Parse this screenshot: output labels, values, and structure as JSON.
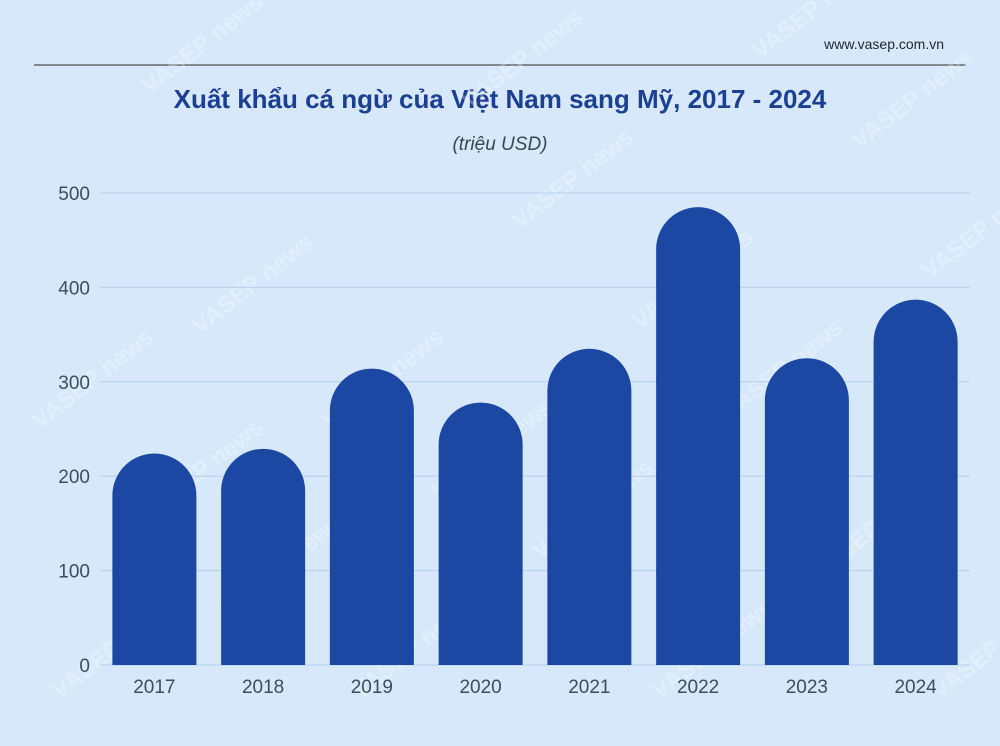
{
  "site": "www.vasep.com.vn",
  "watermark": "VASEP news",
  "colors": {
    "background": "#d6e8fa",
    "bar": "#1c47a3",
    "title": "#1c3f94",
    "grid": "#b5cfec"
  },
  "chart_data": {
    "type": "bar",
    "title": "Xuất khẩu cá ngừ của Việt Nam sang Mỹ, 2017  - 2024",
    "subtitle": "(triệu USD)",
    "categories": [
      "2017",
      "2018",
      "2019",
      "2020",
      "2021",
      "2022",
      "2023",
      "2024"
    ],
    "values": [
      224,
      229,
      314,
      278,
      335,
      485,
      325,
      387
    ],
    "ylim": [
      0,
      500
    ],
    "yticks": [
      0,
      100,
      200,
      300,
      400,
      500
    ],
    "grid": true,
    "legend": "none"
  }
}
